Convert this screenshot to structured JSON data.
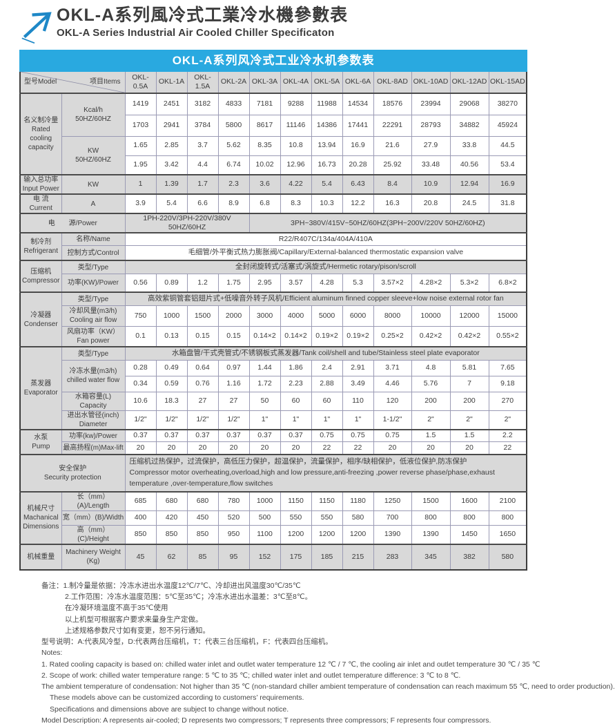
{
  "header": {
    "title_zh": "OKL-A系列風冷式工業冷水機參數表",
    "title_en": "OKL-A Series Industrial Air Cooled Chiller Specificaton"
  },
  "colors": {
    "accent_blue": "#29a9e0",
    "logo_blue": "#1e88c7",
    "row_gray": "#d9d9d9",
    "grid_line": "#9a9ab4",
    "section_line": "#4a4a4a"
  },
  "table": {
    "caption": "OKL-A系列风冷式工业冷水机参数表",
    "corner": {
      "model": "型号Model",
      "items": "项目Items"
    },
    "models": [
      "OKL-0.5A",
      "OKL-1A",
      "OKL-1.5A",
      "OKL-2A",
      "OKL-3A",
      "OKL-4A",
      "OKL-5A",
      "OKL-6A",
      "OKL-8AD",
      "OKL-10AD",
      "OKL-12AD",
      "OKL-15AD"
    ],
    "groups": {
      "rated": {
        "zh": "名义制冷量",
        "en": "Rated cooling capacity"
      },
      "input": {
        "zh": "输入总功率",
        "en": "Input Power"
      },
      "current": {
        "zh": "电 流",
        "en": "Current"
      },
      "power": {
        "zh": "电　　源/Power"
      },
      "refrigerant": {
        "zh": "制冷剂",
        "en": "Refrigerant"
      },
      "compressor": {
        "zh": "压缩机",
        "en": "Compressor"
      },
      "condenser": {
        "zh": "冷凝器",
        "en": "Condenser"
      },
      "evaporator": {
        "zh": "蒸发器",
        "en": "Evaporator"
      },
      "pump": {
        "zh": "水泵",
        "en": "Pump"
      },
      "security": {
        "zh": "安全保护",
        "en": "Security protection"
      },
      "dimensions": {
        "zh": "机械尺寸",
        "en": "Machanical Dimensions"
      },
      "weight": {
        "zh": "机械重量",
        "en": ""
      }
    },
    "items": {
      "kcal": {
        "l1": "Kcal/h",
        "l2": "50HZ/60HZ"
      },
      "kw": {
        "l1": "KW",
        "l2": "50HZ/60HZ"
      },
      "kw_unit": "KW",
      "a_unit": "A",
      "name": "名称/Name",
      "control": "控制方式/Control",
      "type": "类型/Type",
      "comp_power": "功率(KW)/Power",
      "air_flow": {
        "l1": "冷却风量(m3/h)",
        "l2": "Cooling air flow"
      },
      "fan_power": {
        "l1": "风扇功率（KW）",
        "l2": "Fan power"
      },
      "chilled": {
        "l1": "冷冻水量(m3/h)",
        "l2": "chilled water flow"
      },
      "capacity": {
        "l1": "水箱容量(L)",
        "l2": "Capacity"
      },
      "diameter": {
        "l1": "进出水管径(inch)",
        "l2": "Diameter"
      },
      "pump_power": "功率(kw)/Power",
      "max_lift": "最高扬程(m)Max-lift",
      "length": "长（mm）(A)/Length",
      "width": "宽（mm）(B)/Width",
      "height": "高（mm）(C)/Height",
      "weight": {
        "l1": "Machinery Weight",
        "l2": "(Kg)"
      }
    },
    "spans": {
      "power_supply_a": "1PH-220V/3PH-220V/380V 50HZ/60HZ",
      "power_supply_b": "3PH~380V/415V~50HZ/60HZ(3PH~200V/220V  50HZ/60HZ)",
      "refrigerant_name": "R22/R407C/134a/404A/410A",
      "control_value": "毛细管/外平衡式热力膨胀阀/Capillary/External-balanced thermostatic expansion valve",
      "comp_type": "全封闭旋转式/活塞式/涡旋式/Hermetic rotary/pison/scroll",
      "cond_type": "高效紫铜管套铝翅片式+低噪音外转子风机/Efficient aluminum finned copper sleeve+low noise external rotor fan",
      "evap_type": "水箱盘管/干式壳管式/不锈钢板式蒸发器/Tank coil/shell and tube/Stainless steel plate evaporator",
      "security_zh": "压缩机过热保护，过流保护，高低压力保护，超温保护，流量保护，相序/缺相保护，低液位保护,防冻保护",
      "security_en": "Compressor motor overheating,overload,high and low pressure,anti-freezing ,power reverse phase/phase,exhaust temperature ,over-temperature,flow switches"
    },
    "values": {
      "kcal_50": [
        "1419",
        "2451",
        "3182",
        "4833",
        "7181",
        "9288",
        "11988",
        "14534",
        "18576",
        "23994",
        "29068",
        "38270"
      ],
      "kcal_60": [
        "1703",
        "2941",
        "3784",
        "5800",
        "8617",
        "11146",
        "14386",
        "17441",
        "22291",
        "28793",
        "34882",
        "45924"
      ],
      "kw_50": [
        "1.65",
        "2.85",
        "3.7",
        "5.62",
        "8.35",
        "10.8",
        "13.94",
        "16.9",
        "21.6",
        "27.9",
        "33.8",
        "44.5"
      ],
      "kw_60": [
        "1.95",
        "3.42",
        "4.4",
        "6.74",
        "10.02",
        "12.96",
        "16.73",
        "20.28",
        "25.92",
        "33.48",
        "40.56",
        "53.4"
      ],
      "input_power": [
        "1",
        "1.39",
        "1.7",
        "2.3",
        "3.6",
        "4.22",
        "5.4",
        "6.43",
        "8.4",
        "10.9",
        "12.94",
        "16.9"
      ],
      "current": [
        "3.9",
        "5.4",
        "6.6",
        "8.9",
        "6.8",
        "8.3",
        "10.3",
        "12.2",
        "16.3",
        "20.8",
        "24.5",
        "31.8"
      ],
      "comp_power": [
        "0.56",
        "0.89",
        "1.2",
        "1.75",
        "2.95",
        "3.57",
        "4.28",
        "5.3",
        "3.57×2",
        "4.28×2",
        "5.3×2",
        "6.8×2"
      ],
      "air_flow": [
        "750",
        "1000",
        "1500",
        "2000",
        "3000",
        "4000",
        "5000",
        "6000",
        "8000",
        "10000",
        "12000",
        "15000"
      ],
      "fan_power": [
        "0.1",
        "0.13",
        "0.15",
        "0.15",
        "0.14×2",
        "0.14×2",
        "0.19×2",
        "0.19×2",
        "0.25×2",
        "0.42×2",
        "0.42×2",
        "0.55×2"
      ],
      "chilled_50": [
        "0.28",
        "0.49",
        "0.64",
        "0.97",
        "1.44",
        "1.86",
        "2.4",
        "2.91",
        "3.71",
        "4.8",
        "5.81",
        "7.65"
      ],
      "chilled_60": [
        "0.34",
        "0.59",
        "0.76",
        "1.16",
        "1.72",
        "2.23",
        "2.88",
        "3.49",
        "4.46",
        "5.76",
        "7",
        "9.18"
      ],
      "capacity": [
        "10.6",
        "18.3",
        "27",
        "27",
        "50",
        "60",
        "60",
        "110",
        "120",
        "200",
        "200",
        "270"
      ],
      "diameter": [
        "1/2\"",
        "1/2\"",
        "1/2\"",
        "1/2\"",
        "1\"",
        "1\"",
        "1\"",
        "1\"",
        "1-1/2\"",
        "2\"",
        "2\"",
        "2\""
      ],
      "pump_power": [
        "0.37",
        "0.37",
        "0.37",
        "0.37",
        "0.37",
        "0.37",
        "0.75",
        "0.75",
        "0.75",
        "1.5",
        "1.5",
        "2.2"
      ],
      "max_lift": [
        "20",
        "20",
        "20",
        "20",
        "20",
        "20",
        "22",
        "22",
        "20",
        "20",
        "20",
        "22"
      ],
      "length": [
        "685",
        "680",
        "680",
        "780",
        "1000",
        "1150",
        "1150",
        "1180",
        "1250",
        "1500",
        "1600",
        "2100"
      ],
      "width": [
        "400",
        "420",
        "450",
        "520",
        "500",
        "550",
        "550",
        "580",
        "700",
        "800",
        "800",
        "800"
      ],
      "height": [
        "850",
        "850",
        "850",
        "950",
        "1100",
        "1200",
        "1200",
        "1200",
        "1390",
        "1390",
        "1450",
        "1650"
      ],
      "weight": [
        "45",
        "62",
        "85",
        "95",
        "152",
        "175",
        "185",
        "215",
        "283",
        "345",
        "382",
        "580"
      ]
    }
  },
  "notes_zh": [
    "备注：1.制冷量是依据：冷冻水进出水温度12℃/7℃、冷却进出风温度30℃/35℃",
    "2.工作范围：冷冻水温度范围：5℃至35℃；冷冻水进出水温差：3℃至8℃。",
    "在冷凝环境温度不高于35℃使用",
    "以上机型可根据客户要求来量身生产定做。",
    "上述规格参数尺寸如有变更，恕不另行通知。",
    "型号说明：A:代表风冷型，D:代表两台压缩机，T：代表三台压缩机，F：代表四台压缩机。"
  ],
  "notes_en": [
    "Notes:",
    "1. Rated cooling capacity is based on: chilled water inlet and outlet water temperature 12 ℃ / 7 ℃, the cooling air inlet and outlet temperature 30 ℃ / 35 ℃",
    "2. Scope of work: chilled water temperature range: 5 ℃ to 35 ℃; chilled water inlet and outlet temperature difference: 3 ℃ to 8 ℃.",
    "The ambient temperature of condensation: Not higher than 35 ℃ (non-standard chiller ambient temperature of condensation can reach maximum 55 ℃, need to order production).",
    "These models above can be customized according to customers’  requirements.",
    "Specifications and dimensions above are subject to change without notice.",
    "Model Description: A represents air-cooled; D represents two compressors; T represents three compressors; F represents four compressors."
  ]
}
